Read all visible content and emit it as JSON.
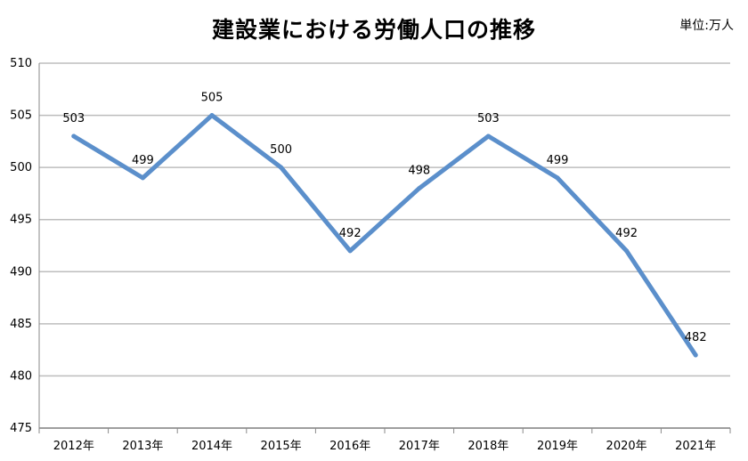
{
  "chart_data": {
    "type": "line",
    "title": "建設業における労働人口の推移",
    "unit": "単位:万人",
    "categories": [
      "2012年",
      "2013年",
      "2014年",
      "2015年",
      "2016年",
      "2017年",
      "2018年",
      "2019年",
      "2020年",
      "2021年"
    ],
    "values": [
      503,
      499,
      505,
      500,
      492,
      498,
      503,
      499,
      492,
      482
    ],
    "data_labels": [
      "503",
      "499",
      "505",
      "500",
      "492",
      "498",
      "503",
      "499",
      "492",
      "482"
    ],
    "ylim": [
      475,
      510
    ],
    "yticks": [
      475,
      480,
      485,
      490,
      495,
      500,
      505,
      510
    ],
    "grid": true,
    "line_color": "#5b8fcb"
  }
}
